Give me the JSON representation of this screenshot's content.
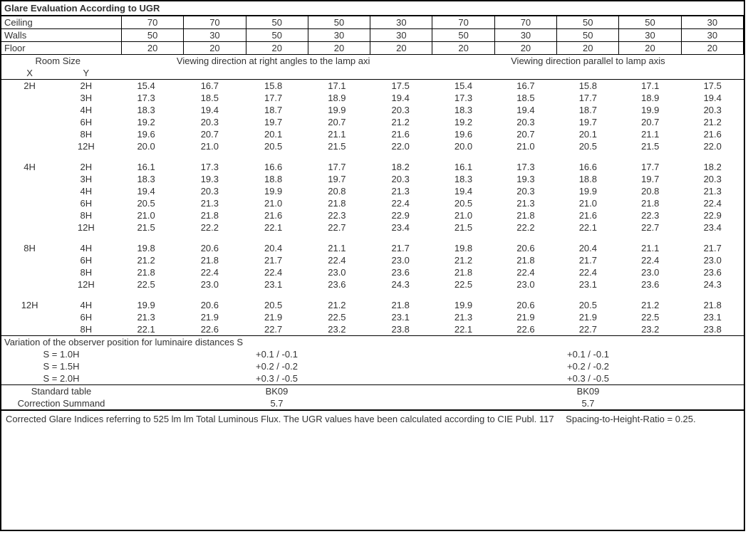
{
  "title": "Glare Evaluation According to UGR",
  "reflectance_headers": {
    "ceiling": {
      "label": "Ceiling",
      "vals": [
        "70",
        "70",
        "50",
        "50",
        "30",
        "70",
        "70",
        "50",
        "50",
        "30"
      ]
    },
    "walls": {
      "label": "Walls",
      "vals": [
        "50",
        "30",
        "50",
        "30",
        "30",
        "50",
        "30",
        "50",
        "30",
        "30"
      ]
    },
    "floor": {
      "label": "Floor",
      "vals": [
        "20",
        "20",
        "20",
        "20",
        "20",
        "20",
        "20",
        "20",
        "20",
        "20"
      ]
    }
  },
  "room_size_header": {
    "main": "Room Size",
    "x": "X",
    "y": "Y"
  },
  "view_headers": {
    "left": "Viewing direction at right angles to the lamp axi",
    "right": "Viewing direction parallel to lamp axis"
  },
  "groups": [
    {
      "x": "2H",
      "rows": [
        {
          "y": "2H",
          "l": [
            "15.4",
            "16.7",
            "15.8",
            "17.1",
            "17.5"
          ],
          "r": [
            "15.4",
            "16.7",
            "15.8",
            "17.1",
            "17.5"
          ]
        },
        {
          "y": "3H",
          "l": [
            "17.3",
            "18.5",
            "17.7",
            "18.9",
            "19.4"
          ],
          "r": [
            "17.3",
            "18.5",
            "17.7",
            "18.9",
            "19.4"
          ]
        },
        {
          "y": "4H",
          "l": [
            "18.3",
            "19.4",
            "18.7",
            "19.9",
            "20.3"
          ],
          "r": [
            "18.3",
            "19.4",
            "18.7",
            "19.9",
            "20.3"
          ]
        },
        {
          "y": "6H",
          "l": [
            "19.2",
            "20.3",
            "19.7",
            "20.7",
            "21.2"
          ],
          "r": [
            "19.2",
            "20.3",
            "19.7",
            "20.7",
            "21.2"
          ]
        },
        {
          "y": "8H",
          "l": [
            "19.6",
            "20.7",
            "20.1",
            "21.1",
            "21.6"
          ],
          "r": [
            "19.6",
            "20.7",
            "20.1",
            "21.1",
            "21.6"
          ]
        },
        {
          "y": "12H",
          "l": [
            "20.0",
            "21.0",
            "20.5",
            "21.5",
            "22.0"
          ],
          "r": [
            "20.0",
            "21.0",
            "20.5",
            "21.5",
            "22.0"
          ]
        }
      ]
    },
    {
      "x": "4H",
      "rows": [
        {
          "y": "2H",
          "l": [
            "16.1",
            "17.3",
            "16.6",
            "17.7",
            "18.2"
          ],
          "r": [
            "16.1",
            "17.3",
            "16.6",
            "17.7",
            "18.2"
          ]
        },
        {
          "y": "3H",
          "l": [
            "18.3",
            "19.3",
            "18.8",
            "19.7",
            "20.3"
          ],
          "r": [
            "18.3",
            "19.3",
            "18.8",
            "19.7",
            "20.3"
          ]
        },
        {
          "y": "4H",
          "l": [
            "19.4",
            "20.3",
            "19.9",
            "20.8",
            "21.3"
          ],
          "r": [
            "19.4",
            "20.3",
            "19.9",
            "20.8",
            "21.3"
          ]
        },
        {
          "y": "6H",
          "l": [
            "20.5",
            "21.3",
            "21.0",
            "21.8",
            "22.4"
          ],
          "r": [
            "20.5",
            "21.3",
            "21.0",
            "21.8",
            "22.4"
          ]
        },
        {
          "y": "8H",
          "l": [
            "21.0",
            "21.8",
            "21.6",
            "22.3",
            "22.9"
          ],
          "r": [
            "21.0",
            "21.8",
            "21.6",
            "22.3",
            "22.9"
          ]
        },
        {
          "y": "12H",
          "l": [
            "21.5",
            "22.2",
            "22.1",
            "22.7",
            "23.4"
          ],
          "r": [
            "21.5",
            "22.2",
            "22.1",
            "22.7",
            "23.4"
          ]
        }
      ]
    },
    {
      "x": "8H",
      "rows": [
        {
          "y": "4H",
          "l": [
            "19.8",
            "20.6",
            "20.4",
            "21.1",
            "21.7"
          ],
          "r": [
            "19.8",
            "20.6",
            "20.4",
            "21.1",
            "21.7"
          ]
        },
        {
          "y": "6H",
          "l": [
            "21.2",
            "21.8",
            "21.7",
            "22.4",
            "23.0"
          ],
          "r": [
            "21.2",
            "21.8",
            "21.7",
            "22.4",
            "23.0"
          ]
        },
        {
          "y": "8H",
          "l": [
            "21.8",
            "22.4",
            "22.4",
            "23.0",
            "23.6"
          ],
          "r": [
            "21.8",
            "22.4",
            "22.4",
            "23.0",
            "23.6"
          ]
        },
        {
          "y": "12H",
          "l": [
            "22.5",
            "23.0",
            "23.1",
            "23.6",
            "24.3"
          ],
          "r": [
            "22.5",
            "23.0",
            "23.1",
            "23.6",
            "24.3"
          ]
        }
      ]
    },
    {
      "x": "12H",
      "rows": [
        {
          "y": "4H",
          "l": [
            "19.9",
            "20.6",
            "20.5",
            "21.2",
            "21.8"
          ],
          "r": [
            "19.9",
            "20.6",
            "20.5",
            "21.2",
            "21.8"
          ]
        },
        {
          "y": "6H",
          "l": [
            "21.3",
            "21.9",
            "21.9",
            "22.5",
            "23.1"
          ],
          "r": [
            "21.3",
            "21.9",
            "21.9",
            "22.5",
            "23.1"
          ]
        },
        {
          "y": "8H",
          "l": [
            "22.1",
            "22.6",
            "22.7",
            "23.2",
            "23.8"
          ],
          "r": [
            "22.1",
            "22.6",
            "22.7",
            "23.2",
            "23.8"
          ]
        }
      ]
    }
  ],
  "variation_title": "Variation of the observer position for luminaire distances S",
  "variation_rows": [
    {
      "lbl": "S = 1.0H",
      "l": "+0.1 / -0.1",
      "r": "+0.1 / -0.1"
    },
    {
      "lbl": "S = 1.5H",
      "l": "+0.2 / -0.2",
      "r": "+0.2 / -0.2"
    },
    {
      "lbl": "S = 2.0H",
      "l": "+0.3 / -0.5",
      "r": "+0.3 / -0.5"
    }
  ],
  "standard_table": {
    "lbl": "Standard table",
    "l": "BK09",
    "r": "BK09"
  },
  "correction": {
    "lbl": "Correction Summand",
    "l": "5.7",
    "r": "5.7"
  },
  "footer": "Corrected Glare Indices referring to 525 lm lm Total Luminous Flux. The UGR values have been calculated according to CIE Publ. 117  Spacing-to-Height-Ratio = 0.25."
}
